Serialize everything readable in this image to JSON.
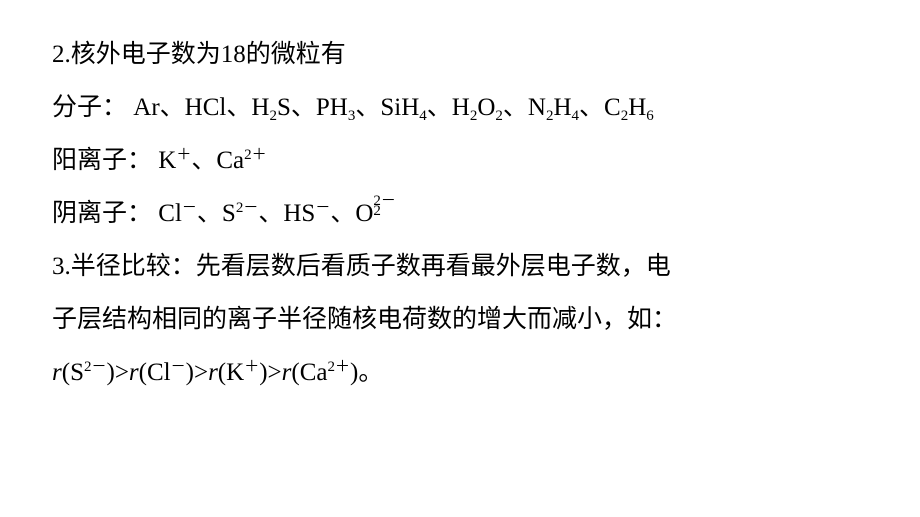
{
  "sec2": {
    "heading": "2.核外电子数为18的微粒有",
    "mol_label": "分子：",
    "molecules": [
      "Ar",
      "HCl",
      "H2S",
      "PH3",
      "SiH4",
      "H2O2",
      "N2H4",
      "C2H6"
    ],
    "cat_label": "阳离子：",
    "cations": [
      {
        "base": "K",
        "charge": "＋"
      },
      {
        "base": "Ca",
        "charge": "2＋"
      }
    ],
    "an_label": "阴离子：",
    "anions_simple": [
      {
        "base": "Cl",
        "charge": "－"
      },
      {
        "base": "S",
        "charge": "2－"
      },
      {
        "base": "HS",
        "charge": "－"
      }
    ],
    "peroxide": {
      "base": "O",
      "sub": "2",
      "charge": "2－"
    }
  },
  "sec3": {
    "l1": "3.半径比较：先看层数后看质子数再看最外层电子数，电",
    "l2a": "子层结构相同的离子半径随核电荷数的增大而减小，如：",
    "r": "r",
    "order": [
      {
        "base": "S",
        "charge": "2－"
      },
      {
        "base": "Cl",
        "charge": "－"
      },
      {
        "base": "K",
        "charge": "＋"
      },
      {
        "base": "Ca",
        "charge": "2＋"
      }
    ],
    "end": "。"
  },
  "sep": "、",
  "gt": ">"
}
